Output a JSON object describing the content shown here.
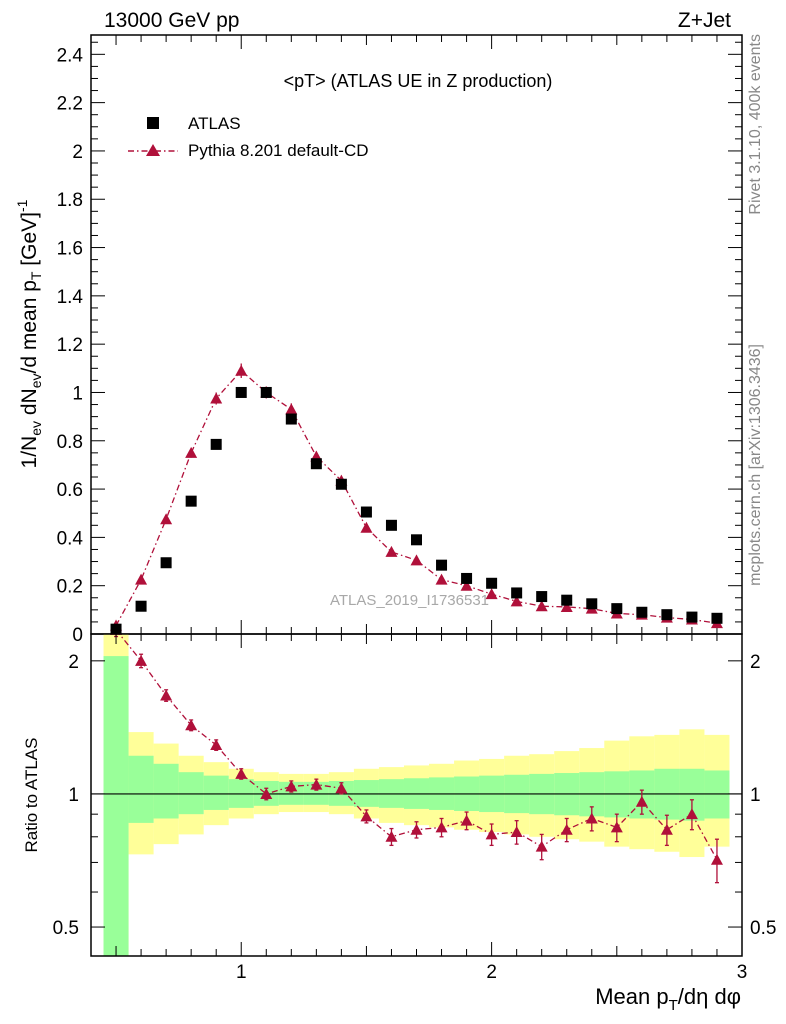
{
  "header": {
    "left": "13000 GeV pp",
    "right": "Z+Jet"
  },
  "side_labels": {
    "rivet": "Rivet 3.1.10,  400k events",
    "mcplots": "mcplots.cern.ch [arXiv:1306.3436]"
  },
  "plot_title": "<pT> (ATLAS UE in Z production)",
  "watermark": "ATLAS_2019_I1736531",
  "colors": {
    "data": "#000000",
    "mc": "#b0103a",
    "band_inner": "#99ff99",
    "band_outer": "#ffff99"
  },
  "chart_data": [
    {
      "type": "scatter",
      "panel": "main",
      "title": "<pT> (ATLAS UE in Z production)",
      "xlabel": "",
      "ylabel": "1/N_ev dN_ev/d mean p_T [GeV]^-1",
      "xlim": [
        0.4,
        3.0
      ],
      "ylim": [
        0,
        2.48
      ],
      "yticks": [
        "0",
        "0.2",
        "0.4",
        "0.6",
        "0.8",
        "1",
        "1.2",
        "1.4",
        "1.6",
        "1.8",
        "2",
        "2.2",
        "2.4"
      ],
      "legend": {
        "placement": "top-left",
        "entries": [
          "ATLAS",
          "Pythia 8.201 default-CD"
        ]
      },
      "series": [
        {
          "name": "ATLAS",
          "x": [
            0.5,
            0.6,
            0.7,
            0.8,
            0.9,
            1.0,
            1.1,
            1.2,
            1.3,
            1.4,
            1.5,
            1.6,
            1.7,
            1.8,
            1.9,
            2.0,
            2.1,
            2.2,
            2.3,
            2.4,
            2.5,
            2.6,
            2.7,
            2.8,
            2.9
          ],
          "values": [
            0.02,
            0.115,
            0.295,
            0.55,
            0.785,
            1.0,
            1.0,
            0.89,
            0.705,
            0.62,
            0.505,
            0.45,
            0.39,
            0.285,
            0.23,
            0.21,
            0.17,
            0.155,
            0.14,
            0.125,
            0.105,
            0.09,
            0.08,
            0.07,
            0.065
          ]
        },
        {
          "name": "Pythia 8.201 default-CD",
          "x": [
            0.5,
            0.6,
            0.7,
            0.8,
            0.9,
            1.0,
            1.1,
            1.2,
            1.3,
            1.4,
            1.5,
            1.6,
            1.7,
            1.8,
            1.9,
            2.0,
            2.1,
            2.2,
            2.3,
            2.4,
            2.5,
            2.6,
            2.7,
            2.8,
            2.9
          ],
          "values": [
            0.035,
            0.225,
            0.475,
            0.75,
            0.975,
            1.09,
            1.0,
            0.93,
            0.735,
            0.635,
            0.44,
            0.34,
            0.305,
            0.225,
            0.2,
            0.165,
            0.135,
            0.115,
            0.112,
            0.105,
            0.085,
            0.08,
            0.068,
            0.06,
            0.045
          ],
          "errors": [
            0.01,
            0.012,
            0.015,
            0.02,
            0.025,
            0.03,
            0.025,
            0.025,
            0.02,
            0.02,
            0.015,
            0.012,
            0.01,
            0.01,
            0.01,
            0.008,
            0.008,
            0.007,
            0.007,
            0.006,
            0.006,
            0.006,
            0.005,
            0.005,
            0.005
          ]
        }
      ]
    },
    {
      "type": "scatter",
      "panel": "ratio",
      "xlabel": "Mean p_T/dη dφ",
      "ylabel": "Ratio to ATLAS",
      "xlim": [
        0.4,
        3.0
      ],
      "ylim": [
        0.43,
        2.3
      ],
      "yscale": "log",
      "xticks": [
        "1",
        "2",
        "3"
      ],
      "yticks": [
        "0.5",
        "1",
        "2"
      ],
      "reference_line": 1,
      "bands": {
        "x_edges": [
          0.45,
          0.55,
          0.65,
          0.75,
          0.85,
          0.95,
          1.05,
          1.15,
          1.25,
          1.35,
          1.45,
          1.55,
          1.65,
          1.75,
          1.85,
          1.95,
          2.05,
          2.15,
          2.25,
          2.35,
          2.45,
          2.55,
          2.65,
          2.75,
          2.85,
          2.95
        ],
        "inner": [
          [
            0.35,
            2.05
          ],
          [
            0.86,
            1.22
          ],
          [
            0.88,
            1.17
          ],
          [
            0.9,
            1.12
          ],
          [
            0.92,
            1.1
          ],
          [
            0.93,
            1.08
          ],
          [
            0.94,
            1.07
          ],
          [
            0.945,
            1.065
          ],
          [
            0.945,
            1.065
          ],
          [
            0.94,
            1.07
          ],
          [
            0.935,
            1.075
          ],
          [
            0.93,
            1.08
          ],
          [
            0.925,
            1.085
          ],
          [
            0.92,
            1.09
          ],
          [
            0.915,
            1.095
          ],
          [
            0.91,
            1.1
          ],
          [
            0.905,
            1.105
          ],
          [
            0.9,
            1.11
          ],
          [
            0.895,
            1.115
          ],
          [
            0.89,
            1.12
          ],
          [
            0.885,
            1.125
          ],
          [
            0.88,
            1.13
          ],
          [
            0.875,
            1.14
          ],
          [
            0.87,
            1.14
          ],
          [
            0.88,
            1.13
          ]
        ],
        "outer": [
          [
            0.35,
            2.35
          ],
          [
            0.73,
            1.38
          ],
          [
            0.77,
            1.3
          ],
          [
            0.81,
            1.22
          ],
          [
            0.85,
            1.18
          ],
          [
            0.88,
            1.14
          ],
          [
            0.9,
            1.12
          ],
          [
            0.91,
            1.11
          ],
          [
            0.91,
            1.11
          ],
          [
            0.9,
            1.12
          ],
          [
            0.88,
            1.14
          ],
          [
            0.86,
            1.15
          ],
          [
            0.85,
            1.16
          ],
          [
            0.84,
            1.17
          ],
          [
            0.83,
            1.19
          ],
          [
            0.82,
            1.2
          ],
          [
            0.81,
            1.22
          ],
          [
            0.8,
            1.23
          ],
          [
            0.79,
            1.25
          ],
          [
            0.78,
            1.27
          ],
          [
            0.76,
            1.32
          ],
          [
            0.75,
            1.35
          ],
          [
            0.74,
            1.36
          ],
          [
            0.72,
            1.4
          ],
          [
            0.76,
            1.36
          ]
        ]
      },
      "series": [
        {
          "name": "Pythia 8.201 default-CD",
          "x": [
            0.5,
            0.6,
            0.7,
            0.8,
            0.9,
            1.0,
            1.1,
            1.2,
            1.3,
            1.4,
            1.5,
            1.6,
            1.7,
            1.8,
            1.9,
            2.0,
            2.1,
            2.2,
            2.3,
            2.4,
            2.5,
            2.6,
            2.7,
            2.8,
            2.9
          ],
          "values": [
            2.35,
            2.0,
            1.67,
            1.43,
            1.29,
            1.11,
            1.0,
            1.04,
            1.05,
            1.03,
            0.89,
            0.8,
            0.83,
            0.84,
            0.87,
            0.81,
            0.82,
            0.76,
            0.83,
            0.88,
            0.84,
            0.96,
            0.83,
            0.9,
            0.71
          ],
          "errors": [
            0.08,
            0.07,
            0.05,
            0.04,
            0.035,
            0.03,
            0.03,
            0.03,
            0.03,
            0.03,
            0.03,
            0.035,
            0.035,
            0.04,
            0.04,
            0.045,
            0.05,
            0.05,
            0.05,
            0.055,
            0.06,
            0.06,
            0.065,
            0.07,
            0.08
          ]
        }
      ]
    }
  ]
}
